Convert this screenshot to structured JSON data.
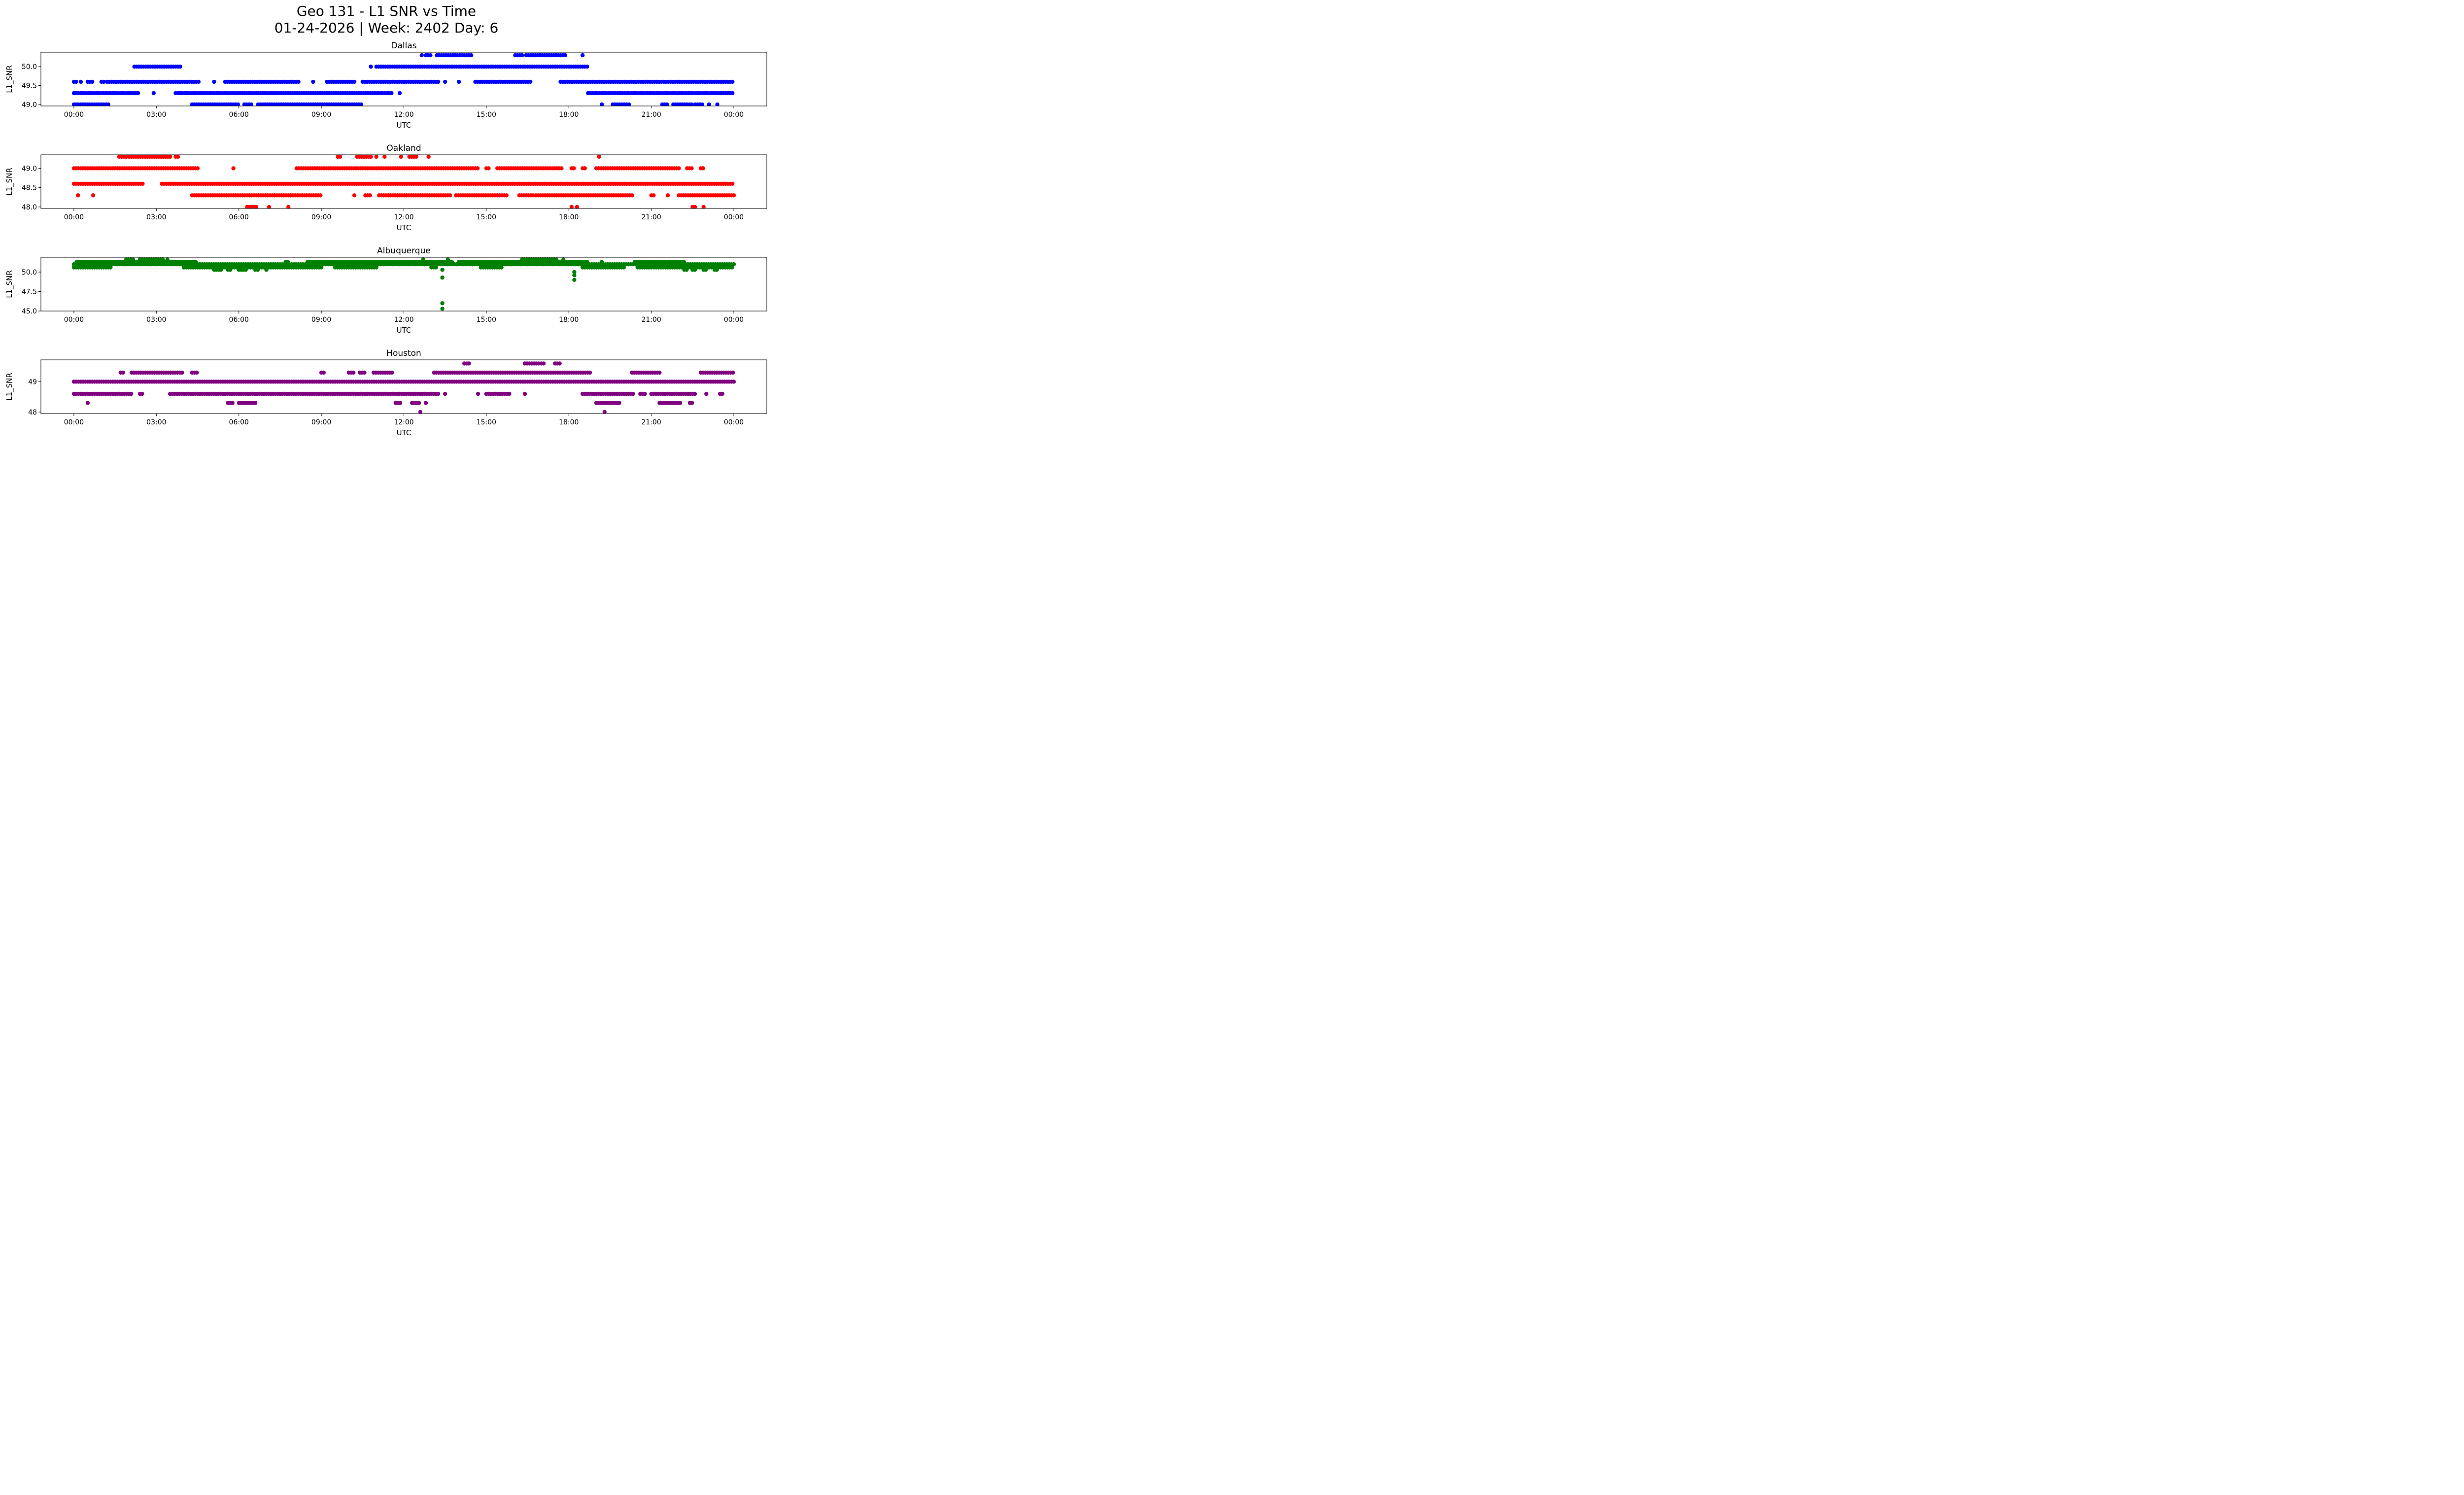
{
  "figure": {
    "title_line1": "Geo 131 - L1 SNR vs Time",
    "title_line2": "01-24-2026 | Week: 2402 Day: 6"
  },
  "chart_data": [
    {
      "type": "scatter",
      "title": "Dallas",
      "xlabel": "UTC",
      "ylabel": "L1_SNR",
      "color": "#0000ff",
      "xlim_hours": [
        -1.2,
        25.2
      ],
      "ylim": [
        48.96,
        50.38
      ],
      "x_ticks": [
        "00:00",
        "03:00",
        "06:00",
        "09:00",
        "12:00",
        "15:00",
        "18:00",
        "21:00",
        "00:00"
      ],
      "y_ticks": [
        {
          "value": 49.0,
          "label": "49.0"
        },
        {
          "value": 49.5,
          "label": "49.5"
        },
        {
          "value": 50.0,
          "label": "50.0"
        }
      ],
      "grid": false,
      "series_runs": [
        {
          "snr": 50.3,
          "runs": [
            [
              12.65,
              12.65
            ],
            [
              12.8,
              13.0
            ],
            [
              13.2,
              14.45
            ],
            [
              16.05,
              16.35
            ],
            [
              16.45,
              17.9
            ],
            [
              18.5,
              18.5
            ]
          ]
        },
        {
          "snr": 50.0,
          "runs": [
            [
              2.2,
              3.9
            ],
            [
              10.8,
              10.8
            ],
            [
              11.0,
              18.7
            ]
          ]
        },
        {
          "snr": 49.6,
          "runs": [
            [
              0.0,
              0.1
            ],
            [
              0.25,
              0.25
            ],
            [
              0.5,
              0.7
            ],
            [
              1.0,
              1.1
            ],
            [
              1.2,
              4.6
            ],
            [
              5.1,
              5.1
            ],
            [
              5.5,
              8.2
            ],
            [
              8.7,
              8.7
            ],
            [
              9.2,
              10.2
            ],
            [
              10.5,
              13.3
            ],
            [
              13.5,
              13.5
            ],
            [
              14.0,
              14.0
            ],
            [
              14.6,
              16.6
            ],
            [
              17.7,
              24.0
            ]
          ]
        },
        {
          "snr": 49.3,
          "runs": [
            [
              0.0,
              2.4
            ],
            [
              2.9,
              2.9
            ],
            [
              3.7,
              11.2
            ],
            [
              11.3,
              11.6
            ],
            [
              11.85,
              11.85
            ],
            [
              18.7,
              24.0
            ]
          ]
        },
        {
          "snr": 49.0,
          "runs": [
            [
              0.0,
              1.3
            ],
            [
              4.3,
              6.0
            ],
            [
              6.2,
              6.5
            ],
            [
              6.7,
              10.5
            ],
            [
              19.2,
              19.2
            ],
            [
              19.6,
              20.2
            ],
            [
              21.4,
              21.6
            ],
            [
              21.8,
              22.5
            ],
            [
              22.6,
              22.9
            ],
            [
              23.1,
              23.1
            ],
            [
              23.4,
              23.4
            ]
          ]
        }
      ]
    },
    {
      "type": "scatter",
      "title": "Oakland",
      "xlabel": "UTC",
      "ylabel": "L1_SNR",
      "color": "#ff0000",
      "xlim_hours": [
        -1.2,
        25.2
      ],
      "ylim": [
        47.96,
        49.35
      ],
      "x_ticks": [
        "00:00",
        "03:00",
        "06:00",
        "09:00",
        "12:00",
        "15:00",
        "18:00",
        "21:00",
        "00:00"
      ],
      "y_ticks": [
        {
          "value": 48.0,
          "label": "48.0"
        },
        {
          "value": 48.5,
          "label": "48.5"
        },
        {
          "value": 49.0,
          "label": "49.0"
        }
      ],
      "grid": false,
      "series_runs": [
        {
          "snr": 49.3,
          "runs": [
            [
              1.65,
              1.9
            ],
            [
              2.0,
              3.5
            ],
            [
              3.7,
              3.8
            ],
            [
              9.6,
              9.7
            ],
            [
              10.3,
              10.8
            ],
            [
              11.0,
              11.0
            ],
            [
              11.3,
              11.3
            ],
            [
              11.9,
              11.9
            ],
            [
              12.2,
              12.5
            ],
            [
              12.9,
              12.9
            ],
            [
              19.1,
              19.1
            ]
          ]
        },
        {
          "snr": 49.0,
          "runs": [
            [
              0.0,
              4.5
            ],
            [
              5.8,
              5.8
            ],
            [
              8.1,
              14.7
            ],
            [
              15.0,
              15.1
            ],
            [
              15.4,
              17.8
            ],
            [
              18.1,
              18.2
            ],
            [
              18.5,
              18.6
            ],
            [
              19.0,
              22.0
            ],
            [
              22.3,
              22.5
            ],
            [
              22.8,
              22.9
            ]
          ]
        },
        {
          "snr": 48.6,
          "runs": [
            [
              0.0,
              2.5
            ],
            [
              3.2,
              24.0
            ]
          ]
        },
        {
          "snr": 48.3,
          "runs": [
            [
              0.15,
              0.15
            ],
            [
              0.7,
              0.7
            ],
            [
              4.3,
              9.0
            ],
            [
              10.2,
              10.2
            ],
            [
              10.6,
              10.8
            ],
            [
              11.1,
              13.7
            ],
            [
              13.9,
              15.8
            ],
            [
              16.2,
              16.7
            ],
            [
              16.8,
              20.3
            ],
            [
              21.0,
              21.1
            ],
            [
              21.6,
              21.6
            ],
            [
              22.0,
              24.0
            ]
          ]
        },
        {
          "snr": 48.0,
          "runs": [
            [
              6.3,
              6.7
            ],
            [
              7.1,
              7.1
            ],
            [
              7.8,
              7.8
            ],
            [
              18.1,
              18.1
            ],
            [
              18.3,
              18.3
            ],
            [
              22.5,
              22.6
            ],
            [
              22.9,
              22.9
            ]
          ]
        }
      ]
    },
    {
      "type": "scatter",
      "title": "Albuquerque",
      "xlabel": "UTC",
      "ylabel": "L1_SNR",
      "color": "#008000",
      "xlim_hours": [
        -1.2,
        25.2
      ],
      "ylim": [
        45.0,
        51.9
      ],
      "x_ticks": [
        "00:00",
        "03:00",
        "06:00",
        "09:00",
        "12:00",
        "15:00",
        "18:00",
        "21:00",
        "00:00"
      ],
      "y_ticks": [
        {
          "value": 45.0,
          "label": "45.0"
        },
        {
          "value": 47.5,
          "label": "47.5"
        },
        {
          "value": 50.0,
          "label": "50.0"
        }
      ],
      "grid": false,
      "series_runs": [
        {
          "snr": 51.6,
          "runs": [
            [
              1.9,
              2.2
            ],
            [
              2.4,
              3.3
            ],
            [
              3.4,
              3.4
            ],
            [
              12.7,
              12.7
            ],
            [
              13.6,
              13.6
            ],
            [
              16.3,
              17.6
            ],
            [
              17.8,
              17.8
            ]
          ]
        },
        {
          "snr": 51.3,
          "runs": [
            [
              0.1,
              4.5
            ],
            [
              7.7,
              7.8
            ],
            [
              8.5,
              13.8
            ],
            [
              14.0,
              18.7
            ],
            [
              19.2,
              19.2
            ],
            [
              20.4,
              21.5
            ],
            [
              21.6,
              22.2
            ]
          ]
        },
        {
          "snr": 51.0,
          "runs": [
            [
              0.0,
              24.0
            ]
          ]
        },
        {
          "snr": 50.6,
          "runs": [
            [
              0.0,
              1.4
            ],
            [
              4.0,
              9.0
            ],
            [
              9.5,
              11.0
            ],
            [
              13.0,
              13.2
            ],
            [
              14.8,
              15.6
            ],
            [
              18.5,
              20.0
            ],
            [
              20.5,
              21.0
            ],
            [
              21.1,
              24.0
            ]
          ]
        },
        {
          "snr": 50.3,
          "runs": [
            [
              5.1,
              5.4
            ],
            [
              5.6,
              5.7
            ],
            [
              6.0,
              6.3
            ],
            [
              6.6,
              6.7
            ],
            [
              7.0,
              7.0
            ],
            [
              13.4,
              13.4
            ],
            [
              22.2,
              22.3
            ],
            [
              22.5,
              22.6
            ],
            [
              22.9,
              23.0
            ],
            [
              23.3,
              23.4
            ]
          ]
        },
        {
          "snr": 50.0,
          "runs": [
            [
              18.2,
              18.2
            ]
          ]
        },
        {
          "snr": 49.6,
          "runs": [
            [
              18.2,
              18.2
            ]
          ]
        },
        {
          "snr": 49.3,
          "runs": [
            [
              13.4,
              13.4
            ]
          ]
        },
        {
          "snr": 49.0,
          "runs": [
            [
              18.2,
              18.2
            ]
          ]
        },
        {
          "snr": 46.0,
          "runs": [
            [
              13.4,
              13.4
            ]
          ]
        },
        {
          "snr": 45.3,
          "runs": [
            [
              13.4,
              13.4
            ]
          ]
        }
      ]
    },
    {
      "type": "scatter",
      "title": "Houston",
      "xlabel": "UTC",
      "ylabel": "L1_SNR",
      "color": "#800080",
      "xlim_hours": [
        -1.2,
        25.2
      ],
      "ylim": [
        47.95,
        49.72
      ],
      "x_ticks": [
        "00:00",
        "03:00",
        "06:00",
        "09:00",
        "12:00",
        "15:00",
        "18:00",
        "21:00",
        "00:00"
      ],
      "y_ticks": [
        {
          "value": 48,
          "label": "48"
        },
        {
          "value": 49,
          "label": "49"
        }
      ],
      "grid": false,
      "series_runs": [
        {
          "snr": 49.6,
          "runs": [
            [
              14.2,
              14.4
            ],
            [
              16.4,
              16.9
            ],
            [
              17.0,
              17.1
            ],
            [
              17.5,
              17.7
            ]
          ]
        },
        {
          "snr": 49.3,
          "runs": [
            [
              1.7,
              1.8
            ],
            [
              2.1,
              4.0
            ],
            [
              4.3,
              4.5
            ],
            [
              9.0,
              9.1
            ],
            [
              10.0,
              10.2
            ],
            [
              10.4,
              10.6
            ],
            [
              10.9,
              11.6
            ],
            [
              13.1,
              18.8
            ],
            [
              20.3,
              21.3
            ],
            [
              22.8,
              24.0
            ]
          ]
        },
        {
          "snr": 49.0,
          "runs": [
            [
              0.0,
              24.0
            ]
          ]
        },
        {
          "snr": 48.6,
          "runs": [
            [
              0.0,
              2.1
            ],
            [
              2.4,
              2.5
            ],
            [
              3.5,
              13.3
            ],
            [
              13.5,
              13.5
            ],
            [
              14.7,
              14.7
            ],
            [
              15.0,
              15.9
            ],
            [
              16.4,
              16.4
            ],
            [
              18.5,
              20.4
            ],
            [
              20.6,
              20.8
            ],
            [
              21.0,
              22.6
            ],
            [
              23.0,
              23.0
            ],
            [
              23.5,
              23.6
            ]
          ]
        },
        {
          "snr": 48.3,
          "runs": [
            [
              0.5,
              0.5
            ],
            [
              5.6,
              5.8
            ],
            [
              6.0,
              6.5
            ],
            [
              6.6,
              6.6
            ],
            [
              11.7,
              11.9
            ],
            [
              12.3,
              12.6
            ],
            [
              12.8,
              12.8
            ],
            [
              19.0,
              19.9
            ],
            [
              21.3,
              22.1
            ],
            [
              22.4,
              22.5
            ]
          ]
        },
        {
          "snr": 48.0,
          "runs": [
            [
              12.6,
              12.6
            ],
            [
              19.3,
              19.3
            ]
          ]
        }
      ]
    }
  ]
}
